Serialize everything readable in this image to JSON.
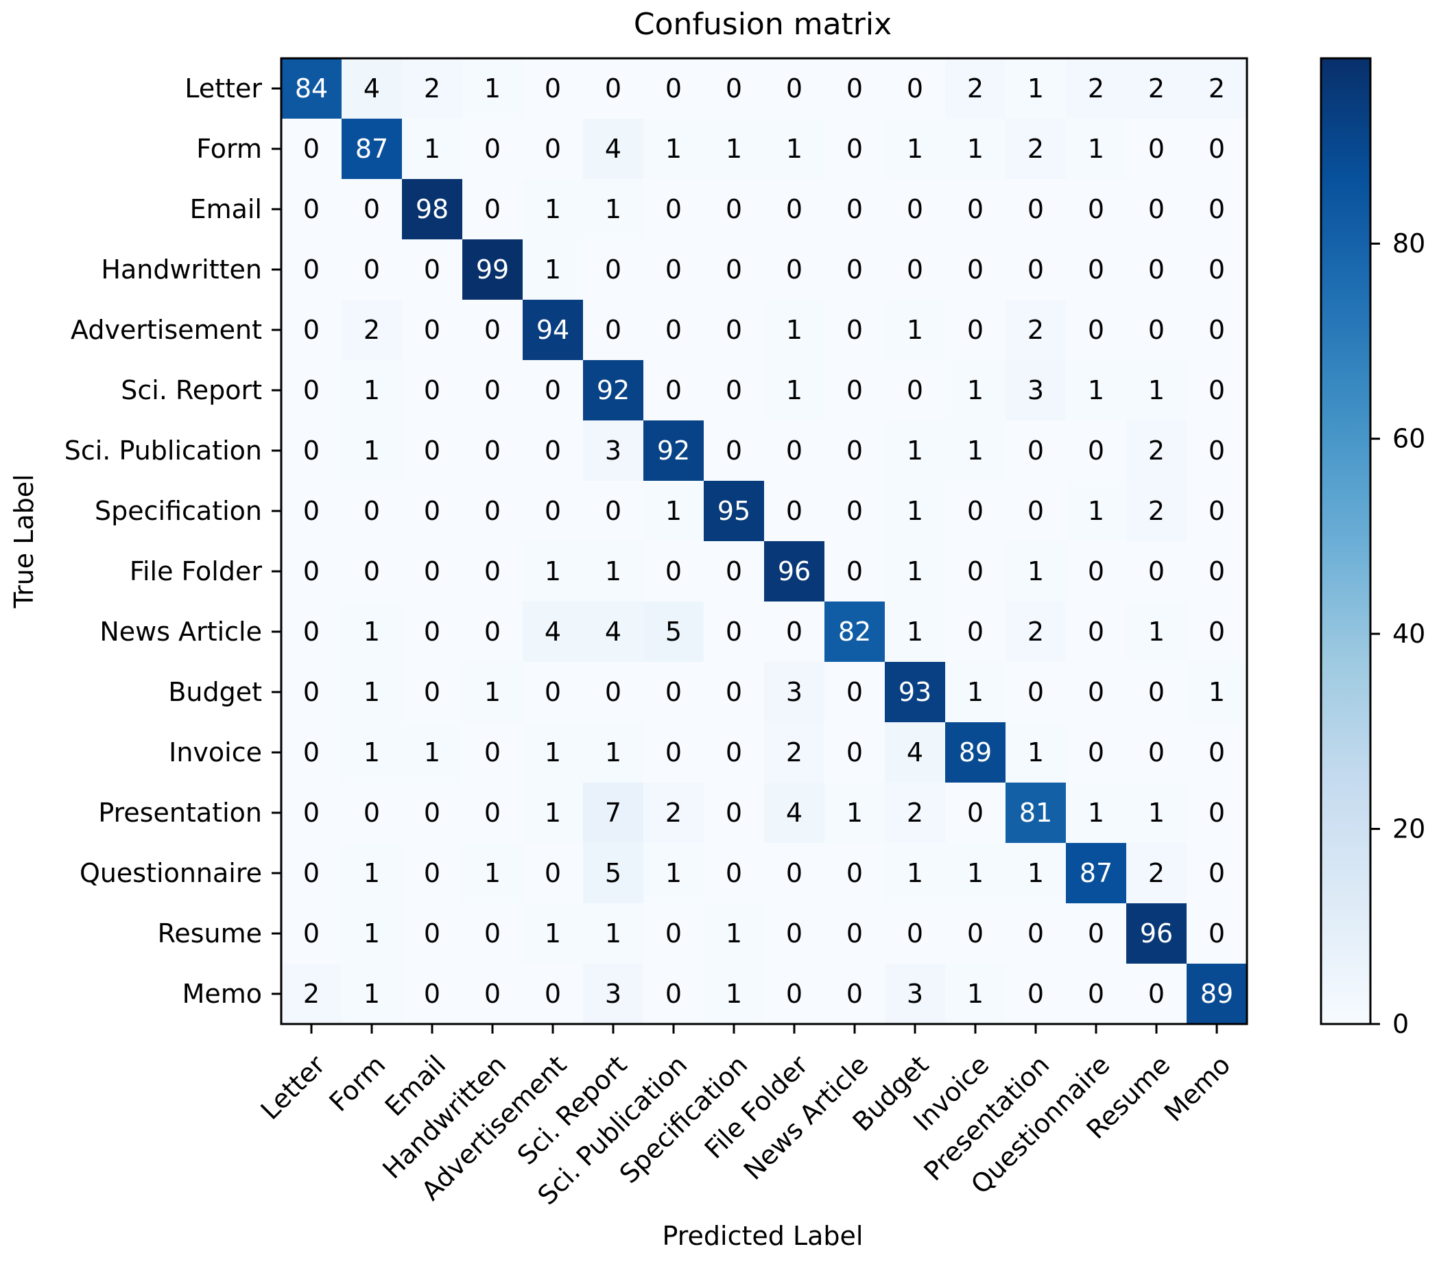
{
  "chart_data": {
    "type": "heatmap",
    "title": "Confusion matrix",
    "xlabel": "Predicted Label",
    "ylabel": "True Label",
    "labels": [
      "Letter",
      "Form",
      "Email",
      "Handwritten",
      "Advertisement",
      "Sci. Report",
      "Sci. Publication",
      "Specification",
      "File Folder",
      "News Article",
      "Budget",
      "Invoice",
      "Presentation",
      "Questionnaire",
      "Resume",
      "Memo"
    ],
    "matrix": [
      [
        84,
        4,
        2,
        1,
        0,
        0,
        0,
        0,
        0,
        0,
        0,
        2,
        1,
        2,
        2,
        2
      ],
      [
        0,
        87,
        1,
        0,
        0,
        4,
        1,
        1,
        1,
        0,
        1,
        1,
        2,
        1,
        0,
        0
      ],
      [
        0,
        0,
        98,
        0,
        1,
        1,
        0,
        0,
        0,
        0,
        0,
        0,
        0,
        0,
        0,
        0
      ],
      [
        0,
        0,
        0,
        99,
        1,
        0,
        0,
        0,
        0,
        0,
        0,
        0,
        0,
        0,
        0,
        0
      ],
      [
        0,
        2,
        0,
        0,
        94,
        0,
        0,
        0,
        1,
        0,
        1,
        0,
        2,
        0,
        0,
        0
      ],
      [
        0,
        1,
        0,
        0,
        0,
        92,
        0,
        0,
        1,
        0,
        0,
        1,
        3,
        1,
        1,
        0
      ],
      [
        0,
        1,
        0,
        0,
        0,
        3,
        92,
        0,
        0,
        0,
        1,
        1,
        0,
        0,
        2,
        0
      ],
      [
        0,
        0,
        0,
        0,
        0,
        0,
        1,
        95,
        0,
        0,
        1,
        0,
        0,
        1,
        2,
        0
      ],
      [
        0,
        0,
        0,
        0,
        1,
        1,
        0,
        0,
        96,
        0,
        1,
        0,
        1,
        0,
        0,
        0
      ],
      [
        0,
        1,
        0,
        0,
        4,
        4,
        5,
        0,
        0,
        82,
        1,
        0,
        2,
        0,
        1,
        0
      ],
      [
        0,
        1,
        0,
        1,
        0,
        0,
        0,
        0,
        3,
        0,
        93,
        1,
        0,
        0,
        0,
        1
      ],
      [
        0,
        1,
        1,
        0,
        1,
        1,
        0,
        0,
        2,
        0,
        4,
        89,
        1,
        0,
        0,
        0
      ],
      [
        0,
        0,
        0,
        0,
        1,
        7,
        2,
        0,
        4,
        1,
        2,
        0,
        81,
        1,
        1,
        0
      ],
      [
        0,
        1,
        0,
        1,
        0,
        5,
        1,
        0,
        0,
        0,
        1,
        1,
        1,
        87,
        2,
        0
      ],
      [
        0,
        1,
        0,
        0,
        1,
        1,
        0,
        1,
        0,
        0,
        0,
        0,
        0,
        0,
        96,
        0
      ],
      [
        2,
        1,
        0,
        0,
        0,
        3,
        0,
        1,
        0,
        0,
        3,
        1,
        0,
        0,
        0,
        89
      ]
    ],
    "color_range": [
      0,
      99
    ],
    "colormap": "Blues",
    "colormap_stops": [
      "#f7fbff",
      "#deebf7",
      "#c6dbef",
      "#9ecae1",
      "#6baed6",
      "#4292c6",
      "#2171b5",
      "#08519c",
      "#08306b"
    ],
    "colorbar_ticks": [
      0,
      20,
      40,
      60,
      80
    ],
    "colorbar_tick_labels": [
      "0",
      "20",
      "40",
      "60",
      "80"
    ]
  }
}
